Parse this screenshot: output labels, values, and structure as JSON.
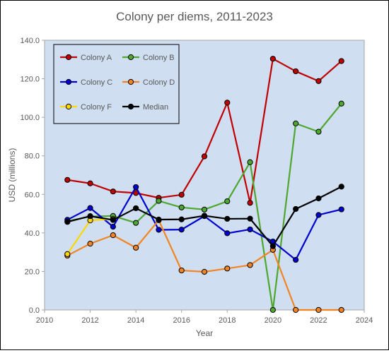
{
  "chart_data": {
    "type": "line",
    "title": "Colony per diems, 2011-2023",
    "xlabel": "Year",
    "ylabel": "USD (millions)",
    "xlim": [
      2010,
      2024
    ],
    "ylim": [
      0,
      140
    ],
    "xticks": [
      2010,
      2012,
      2014,
      2016,
      2018,
      2020,
      2022,
      2024
    ],
    "yticks": [
      "0.0",
      "20.0",
      "40.0",
      "60.0",
      "80.0",
      "100.0",
      "120.0",
      "140.0"
    ],
    "grid": false,
    "legend": "top-left",
    "x": [
      2011,
      2012,
      2013,
      2014,
      2015,
      2016,
      2017,
      2018,
      2019,
      2020,
      2021,
      2022,
      2023
    ],
    "series": [
      {
        "name": "Colony A",
        "color": "#c00000",
        "values": [
          67.5,
          65.7,
          61.5,
          60.7,
          58.2,
          59.8,
          79.7,
          107.6,
          55.6,
          130.4,
          123.9,
          118.8,
          129.2
        ]
      },
      {
        "name": "Colony B",
        "color": "#4ea72e",
        "values": [
          46.1,
          48.5,
          48.8,
          45.2,
          56.6,
          53.2,
          52.1,
          56.4,
          76.7,
          0.0,
          96.8,
          92.5,
          107.1
        ]
      },
      {
        "name": "Colony C",
        "color": "#0000d0",
        "values": [
          46.8,
          52.9,
          43.2,
          63.8,
          41.6,
          41.7,
          48.7,
          39.8,
          41.8,
          35.5,
          26.0,
          49.3,
          52.2
        ]
      },
      {
        "name": "Colony D",
        "color": "#f28522",
        "values": [
          28.2,
          34.4,
          38.8,
          32.3,
          46.6,
          20.5,
          19.8,
          21.5,
          23.3,
          31.2,
          0.0,
          0.0,
          0.0
        ]
      },
      {
        "name": "Colony F",
        "color": "#ffd700",
        "values": [
          29.0,
          46.5,
          47.2,
          null,
          null,
          null,
          null,
          null,
          null,
          null,
          null,
          null,
          null
        ]
      },
      {
        "name": "Median",
        "color": "#000000",
        "values": [
          45.7,
          48.7,
          46.7,
          52.8,
          46.9,
          47.0,
          48.9,
          47.3,
          47.4,
          33.1,
          52.4,
          57.9,
          64.0
        ]
      }
    ]
  }
}
